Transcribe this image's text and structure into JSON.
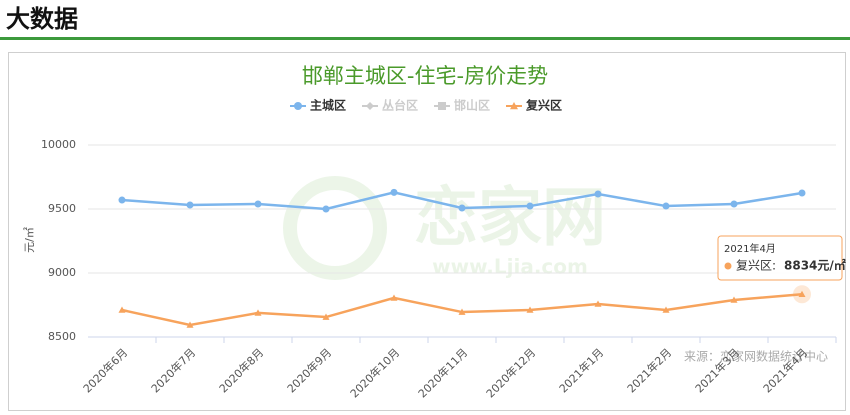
{
  "header": {
    "title": "大数据"
  },
  "chart_data": {
    "type": "line",
    "title": "邯郸主城区-住宅-房价走势",
    "y_axis_label": "元/㎡",
    "categories": [
      "2020年6月",
      "2020年7月",
      "2020年8月",
      "2020年9月",
      "2020年10月",
      "2020年11月",
      "2020年12月",
      "2021年1月",
      "2021年2月",
      "2021年3月",
      "2021年4月"
    ],
    "series": [
      {
        "name": "主城区",
        "color": "#7cb5ec",
        "marker": "circle",
        "values": [
          9570,
          9531,
          9539,
          9500,
          9630,
          9508,
          9523,
          9617,
          9523,
          9539,
          9625
        ]
      },
      {
        "name": "复兴区",
        "color": "#f7a35c",
        "marker": "triangle",
        "values": [
          8711,
          8594,
          8688,
          8656,
          8805,
          8695,
          8711,
          8758,
          8711,
          8789,
          8834
        ],
        "value_labels": [
          null,
          null,
          null,
          null,
          null,
          null,
          null,
          null,
          null,
          null,
          "8834元/㎡"
        ]
      }
    ],
    "hidden_series": [
      {
        "name": "丛台区",
        "marker": "diamond"
      },
      {
        "name": "邯山区",
        "marker": "square"
      }
    ],
    "ylim": [
      8500,
      10000
    ],
    "yticks": [
      8500,
      9000,
      9500,
      10000
    ],
    "grid": true,
    "tooltip": {
      "label": "复兴区:"
    },
    "source": "来源：恋家网数据统计中心",
    "watermark": [
      "恋家网",
      "www.Ljia.com"
    ]
  }
}
